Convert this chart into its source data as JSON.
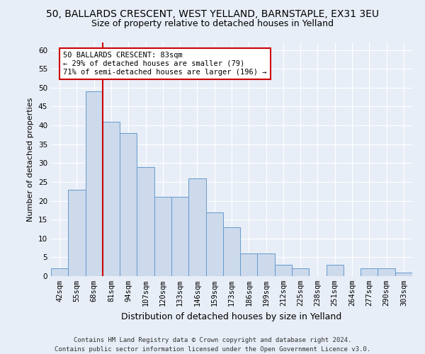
{
  "title": "50, BALLARDS CRESCENT, WEST YELLAND, BARNSTAPLE, EX31 3EU",
  "subtitle": "Size of property relative to detached houses in Yelland",
  "xlabel": "Distribution of detached houses by size in Yelland",
  "ylabel": "Number of detached properties",
  "bar_values": [
    2,
    23,
    49,
    41,
    38,
    29,
    21,
    21,
    26,
    17,
    13,
    6,
    6,
    3,
    2,
    0,
    3,
    0,
    2,
    2,
    1
  ],
  "bar_labels": [
    "42sqm",
    "55sqm",
    "68sqm",
    "81sqm",
    "94sqm",
    "107sqm",
    "120sqm",
    "133sqm",
    "146sqm",
    "159sqm",
    "173sqm",
    "186sqm",
    "199sqm",
    "212sqm",
    "225sqm",
    "238sqm",
    "251sqm",
    "264sqm",
    "277sqm",
    "290sqm",
    "303sqm"
  ],
  "bar_color": "#ccdaec",
  "bar_edgecolor": "#6699cc",
  "ylim": [
    0,
    62
  ],
  "yticks": [
    0,
    5,
    10,
    15,
    20,
    25,
    30,
    35,
    40,
    45,
    50,
    55,
    60
  ],
  "property_line_index": 3,
  "property_line_color": "#cc0000",
  "annotation_text": "50 BALLARDS CRESCENT: 83sqm\n← 29% of detached houses are smaller (79)\n71% of semi-detached houses are larger (196) →",
  "annotation_box_facecolor": "#ffffff",
  "annotation_box_edgecolor": "#cc0000",
  "footer_line1": "Contains HM Land Registry data © Crown copyright and database right 2024.",
  "footer_line2": "Contains public sector information licensed under the Open Government Licence v3.0.",
  "background_color": "#e8eef7",
  "grid_color": "#ffffff",
  "title_fontsize": 10,
  "subtitle_fontsize": 9,
  "ylabel_fontsize": 8,
  "xlabel_fontsize": 9,
  "tick_fontsize": 7.5,
  "annotation_fontsize": 7.5,
  "footer_fontsize": 6.5
}
